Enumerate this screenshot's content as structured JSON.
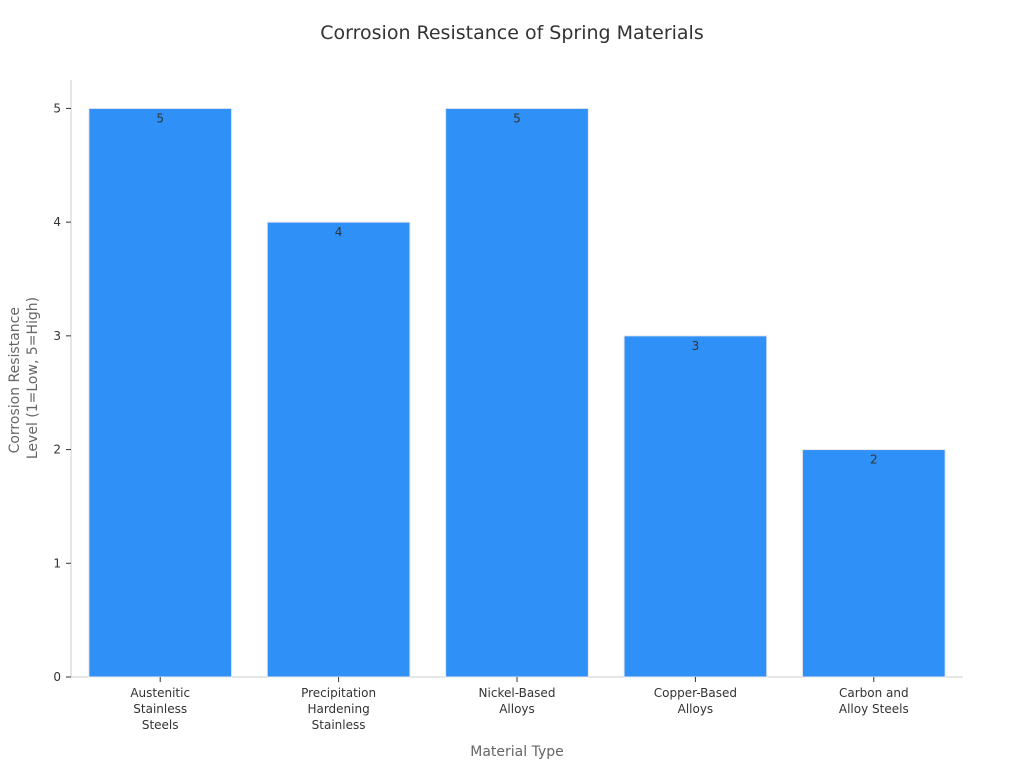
{
  "chart_data": {
    "type": "bar",
    "title": "Corrosion Resistance of Spring Materials",
    "xlabel": "Material Type",
    "ylabel": [
      "Corrosion Resistance",
      "Level (1=Low, 5=High)"
    ],
    "categories": [
      [
        "Austenitic",
        "Stainless",
        "Steels"
      ],
      [
        "Precipitation",
        "Hardening",
        "Stainless"
      ],
      [
        "Nickel-Based",
        "Alloys"
      ],
      [
        "Copper-Based",
        "Alloys"
      ],
      [
        "Carbon and",
        "Alloy Steels"
      ]
    ],
    "values": [
      5,
      4,
      5,
      3,
      2
    ],
    "data_labels": [
      "5",
      "4",
      "5",
      "3",
      "2"
    ],
    "yticks": [
      0,
      1,
      2,
      3,
      4,
      5
    ],
    "ylim": [
      0,
      5.25
    ],
    "bar_color": "#2f90f8",
    "grid": false,
    "legend": "none"
  }
}
